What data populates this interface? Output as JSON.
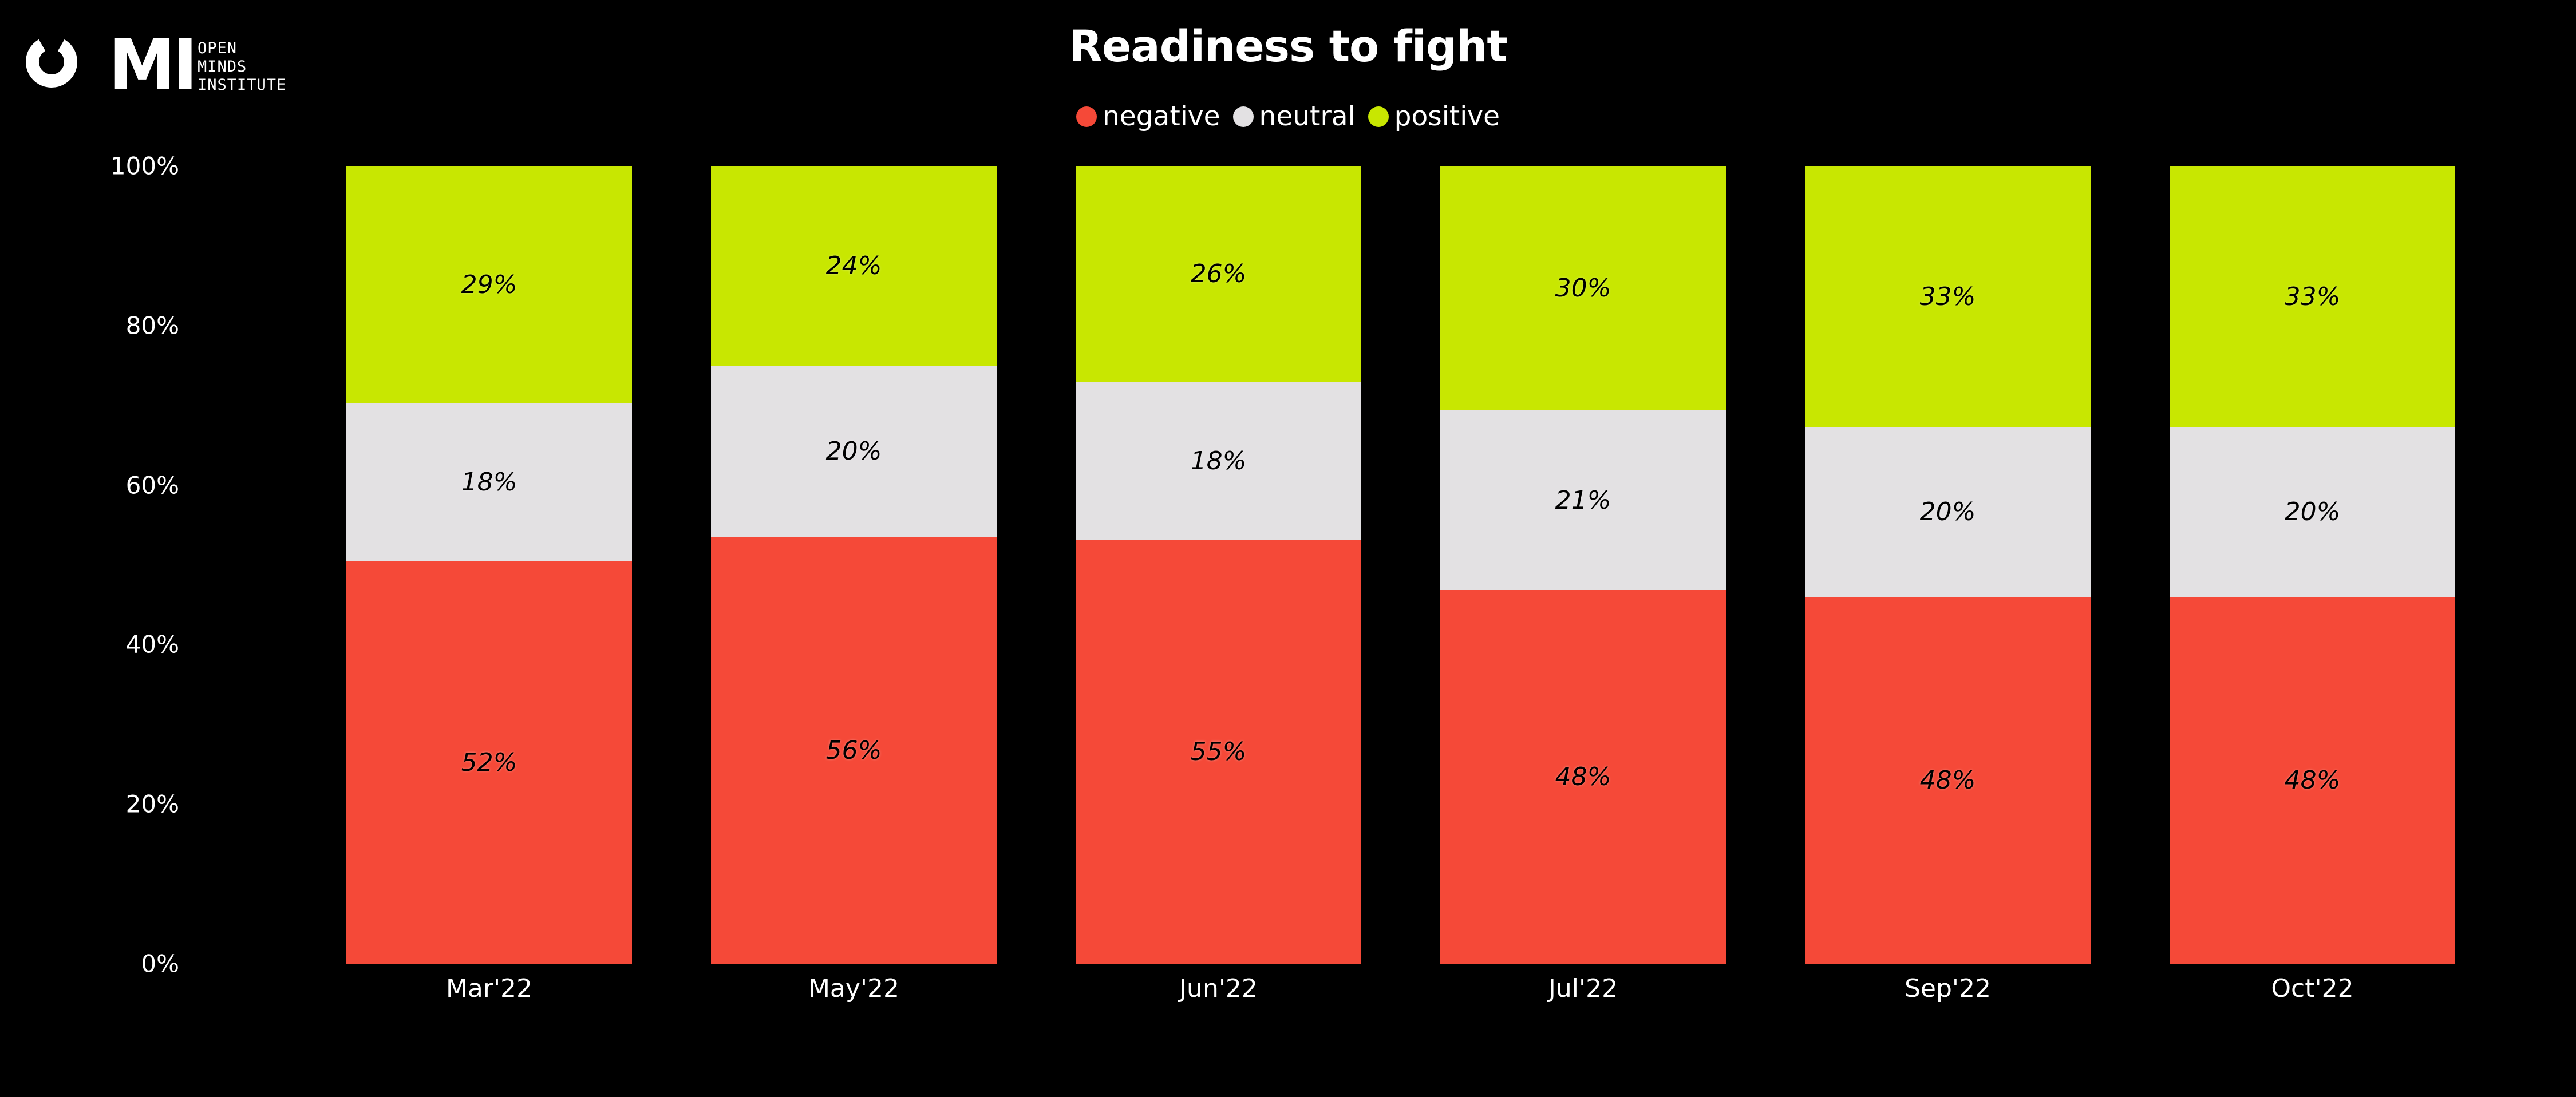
{
  "logo": {
    "brand": "MI",
    "org_lines": [
      "OPEN",
      "MINDS",
      "INSTITUTE"
    ]
  },
  "header": {
    "title": "Readiness to fight"
  },
  "legend": {
    "items": [
      {
        "label": "negative",
        "color": "#f54938"
      },
      {
        "label": "neutral",
        "color": "#e3e1e3"
      },
      {
        "label": "positive",
        "color": "#c8e701"
      }
    ]
  },
  "chart_data": {
    "type": "bar",
    "stacking": "percent",
    "title": "Readiness to fight",
    "categories": [
      "Mar'22",
      "May'22",
      "Jun'22",
      "Jul'22",
      "Sep'22",
      "Oct'22"
    ],
    "series": [
      {
        "name": "negative",
        "color": "#f54938",
        "values": [
          52,
          56,
          55,
          48,
          48,
          48
        ]
      },
      {
        "name": "neutral",
        "color": "#e3e1e3",
        "values": [
          18,
          20,
          18,
          21,
          20,
          20
        ]
      },
      {
        "name": "positive",
        "color": "#c8e701",
        "values": [
          29,
          24,
          26,
          30,
          33,
          33
        ]
      }
    ],
    "data_label_suffix": "%",
    "xlabel": "",
    "ylabel": "",
    "ylim": [
      0,
      100
    ],
    "yticks": [
      "100%",
      "80%",
      "60%",
      "40%",
      "20%",
      "0%"
    ],
    "grid": false,
    "legend_position": "top-center",
    "background": "#000000",
    "text_color": "#ffffff"
  }
}
